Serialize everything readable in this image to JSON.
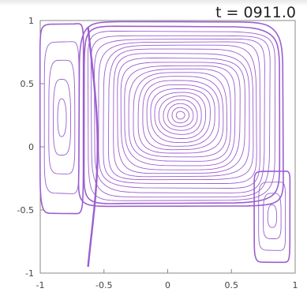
{
  "chart_data": {
    "type": "line",
    "title": "t = 0911.0",
    "xlabel": "",
    "ylabel": "",
    "xlim": [
      -1,
      1
    ],
    "ylim": [
      -1,
      1
    ],
    "grid": false,
    "x_ticks": [
      "-1",
      "-0.5",
      "0",
      "0.5",
      "1"
    ],
    "y_ticks": [
      "1",
      "0.5",
      "0",
      "-0.5",
      "-1"
    ],
    "line_color": "#9b5fd0",
    "series": [
      {
        "center": [
          0.1,
          0.25
        ],
        "extent": [
          0.8,
          0.73
        ],
        "levels": 24
      },
      {
        "center": [
          -0.83,
          0.23
        ],
        "extent": [
          0.17,
          0.75
        ],
        "levels": 5
      },
      {
        "center": [
          0.82,
          -0.55
        ],
        "extent": [
          0.14,
          0.36
        ],
        "levels": 4
      }
    ]
  }
}
